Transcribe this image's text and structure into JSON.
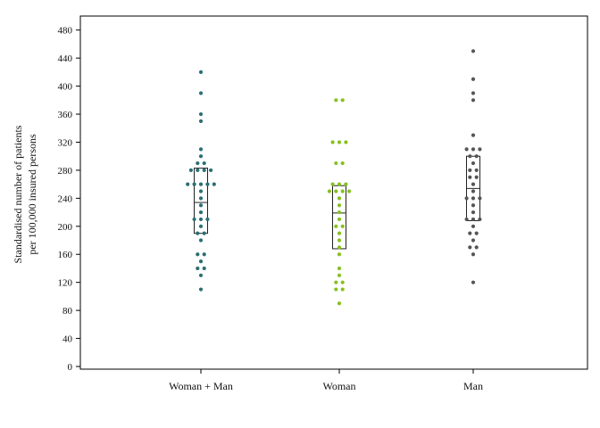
{
  "chart_data": {
    "type": "scatter",
    "subtype": "dot-strip-with-boxplot",
    "title": "",
    "xlabel": "",
    "ylabel_lines": [
      "Standardised number of patients",
      "per 100,000 insured persons"
    ],
    "ylim": [
      0,
      500
    ],
    "yticks": [
      0,
      40,
      80,
      120,
      160,
      200,
      240,
      280,
      320,
      360,
      400,
      440,
      480
    ],
    "grid": false,
    "legend": "none",
    "categories": [
      "Woman + Man",
      "Woman",
      "Man"
    ],
    "series": [
      {
        "category": "Woman + Man",
        "color": "#2a6f73",
        "box": {
          "q1": 190,
          "median": 234,
          "q3": 283
        },
        "points": [
          420,
          390,
          360,
          350,
          310,
          300,
          290,
          290,
          280,
          280,
          280,
          280,
          260,
          260,
          260,
          260,
          260,
          250,
          240,
          230,
          220,
          210,
          210,
          210,
          200,
          190,
          190,
          180,
          160,
          160,
          150,
          140,
          140,
          130,
          110
        ]
      },
      {
        "category": "Woman",
        "color": "#86c01e",
        "box": {
          "q1": 168,
          "median": 219,
          "q3": 258
        },
        "points": [
          380,
          380,
          320,
          320,
          320,
          290,
          290,
          260,
          260,
          260,
          250,
          250,
          250,
          250,
          240,
          230,
          220,
          210,
          200,
          200,
          190,
          180,
          170,
          160,
          140,
          130,
          120,
          120,
          110,
          110,
          90
        ]
      },
      {
        "category": "Man",
        "color": "#555555",
        "box": {
          "q1": 208,
          "median": 254,
          "q3": 300
        },
        "points": [
          450,
          410,
          390,
          380,
          330,
          310,
          310,
          310,
          300,
          300,
          290,
          280,
          280,
          270,
          270,
          260,
          250,
          240,
          240,
          240,
          230,
          220,
          210,
          210,
          210,
          200,
          190,
          190,
          180,
          170,
          170,
          160,
          120
        ]
      }
    ]
  }
}
